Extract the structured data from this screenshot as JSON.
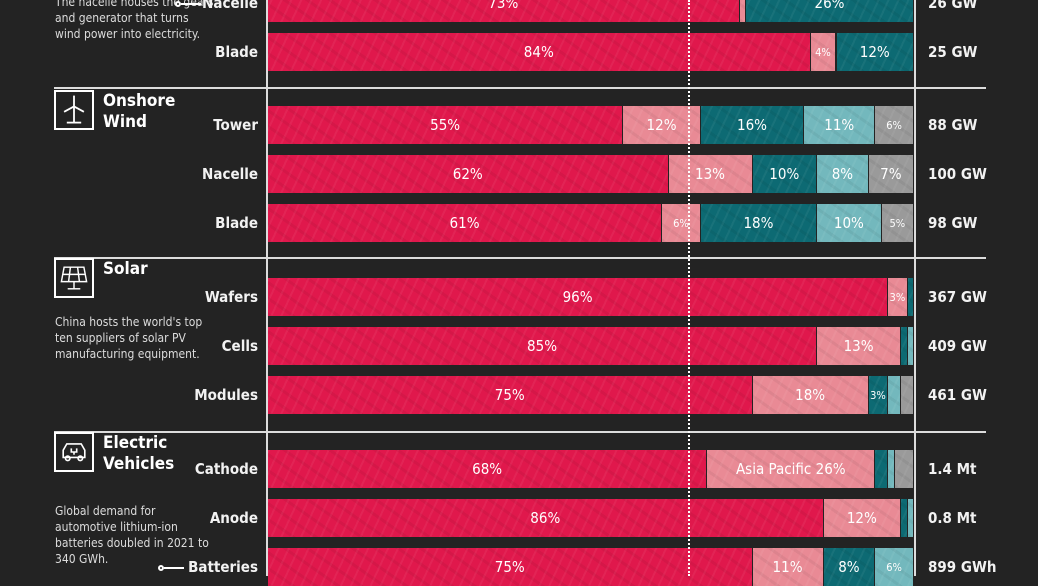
{
  "colors": {
    "china": "#e0184c",
    "asia_pacific": "#e98a95",
    "europe": "#0d6a73",
    "north_america": "#73b8bd",
    "rest_of_world": "#9a9a9a",
    "background": "#232323"
  },
  "sections": [
    {
      "title": "",
      "icon": "",
      "note": "The nacelle houses the gears and generator that turns wind power into electricity.",
      "pointer_row": "Nacelle"
    },
    {
      "title": "Onshore Wind",
      "icon": "wind-turbine-icon",
      "note": "",
      "pointer_row": ""
    },
    {
      "title": "Solar",
      "icon": "solar-panel-icon",
      "note": "China hosts the world's top ten suppliers of solar PV manufacturing equipment.",
      "pointer_row": ""
    },
    {
      "title": "Electric Vehicles",
      "icon": "electric-car-icon",
      "note": "Global demand for automotive lithium-ion batteries doubled in 2021 to 340 GWh.",
      "pointer_row": "Batteries"
    }
  ],
  "chart_data": {
    "type": "bar",
    "stacked": true,
    "orientation": "horizontal",
    "xlim": [
      0,
      100
    ],
    "rows": [
      {
        "section": 0,
        "label": "Nacelle",
        "capacity": "26 GW",
        "segments": [
          {
            "color": "china",
            "value": 73,
            "label": "73%"
          },
          {
            "color": "asia_pacific",
            "value": 1,
            "label": ""
          },
          {
            "color": "europe",
            "value": 26,
            "label": "26%"
          }
        ]
      },
      {
        "section": 0,
        "label": "Blade",
        "capacity": "25 GW",
        "segments": [
          {
            "color": "china",
            "value": 84,
            "label": "84%"
          },
          {
            "color": "asia_pacific",
            "value": 4,
            "label": "4%"
          },
          {
            "color": "europe",
            "value": 12,
            "label": "12%"
          }
        ]
      },
      {
        "section": 1,
        "label": "Tower",
        "capacity": "88 GW",
        "segments": [
          {
            "color": "china",
            "value": 55,
            "label": "55%"
          },
          {
            "color": "asia_pacific",
            "value": 12,
            "label": "12%"
          },
          {
            "color": "europe",
            "value": 16,
            "label": "16%"
          },
          {
            "color": "north_america",
            "value": 11,
            "label": "11%"
          },
          {
            "color": "rest_of_world",
            "value": 6,
            "label": "6%"
          }
        ]
      },
      {
        "section": 1,
        "label": "Nacelle",
        "capacity": "100 GW",
        "segments": [
          {
            "color": "china",
            "value": 62,
            "label": "62%"
          },
          {
            "color": "asia_pacific",
            "value": 13,
            "label": "13%"
          },
          {
            "color": "europe",
            "value": 10,
            "label": "10%"
          },
          {
            "color": "north_america",
            "value": 8,
            "label": "8%"
          },
          {
            "color": "rest_of_world",
            "value": 7,
            "label": "7%"
          }
        ]
      },
      {
        "section": 1,
        "label": "Blade",
        "capacity": "98 GW",
        "segments": [
          {
            "color": "china",
            "value": 61,
            "label": "61%"
          },
          {
            "color": "asia_pacific",
            "value": 6,
            "label": "6%"
          },
          {
            "color": "europe",
            "value": 18,
            "label": "18%"
          },
          {
            "color": "north_america",
            "value": 10,
            "label": "10%"
          },
          {
            "color": "rest_of_world",
            "value": 5,
            "label": "5%"
          }
        ]
      },
      {
        "section": 2,
        "label": "Wafers",
        "capacity": "367 GW",
        "segments": [
          {
            "color": "china",
            "value": 96,
            "label": "96%"
          },
          {
            "color": "asia_pacific",
            "value": 3,
            "label": "3%"
          },
          {
            "color": "europe",
            "value": 1,
            "label": ""
          }
        ]
      },
      {
        "section": 2,
        "label": "Cells",
        "capacity": "409 GW",
        "segments": [
          {
            "color": "china",
            "value": 85,
            "label": "85%"
          },
          {
            "color": "asia_pacific",
            "value": 13,
            "label": "13%"
          },
          {
            "color": "europe",
            "value": 1,
            "label": ""
          },
          {
            "color": "north_america",
            "value": 1,
            "label": ""
          }
        ]
      },
      {
        "section": 2,
        "label": "Modules",
        "capacity": "461 GW",
        "segments": [
          {
            "color": "china",
            "value": 75,
            "label": "75%"
          },
          {
            "color": "asia_pacific",
            "value": 18,
            "label": "18%"
          },
          {
            "color": "europe",
            "value": 3,
            "label": "3%"
          },
          {
            "color": "north_america",
            "value": 2,
            "label": ""
          },
          {
            "color": "rest_of_world",
            "value": 2,
            "label": ""
          }
        ]
      },
      {
        "section": 3,
        "label": "Cathode",
        "capacity": "1.4 Mt",
        "segments": [
          {
            "color": "china",
            "value": 68,
            "label": "68%"
          },
          {
            "color": "asia_pacific",
            "value": 26,
            "label": "Asia Pacific  26%"
          },
          {
            "color": "europe",
            "value": 2,
            "label": ""
          },
          {
            "color": "north_america",
            "value": 1,
            "label": ""
          },
          {
            "color": "rest_of_world",
            "value": 3,
            "label": ""
          }
        ]
      },
      {
        "section": 3,
        "label": "Anode",
        "capacity": "0.8 Mt",
        "segments": [
          {
            "color": "china",
            "value": 86,
            "label": "86%"
          },
          {
            "color": "asia_pacific",
            "value": 12,
            "label": "12%"
          },
          {
            "color": "europe",
            "value": 1,
            "label": ""
          },
          {
            "color": "north_america",
            "value": 1,
            "label": ""
          }
        ]
      },
      {
        "section": 3,
        "label": "Batteries",
        "capacity": "899 GWh",
        "segments": [
          {
            "color": "china",
            "value": 75,
            "label": "75%"
          },
          {
            "color": "asia_pacific",
            "value": 11,
            "label": "11%"
          },
          {
            "color": "europe",
            "value": 8,
            "label": "8%"
          },
          {
            "color": "north_america",
            "value": 6,
            "label": "6%"
          }
        ]
      }
    ]
  }
}
